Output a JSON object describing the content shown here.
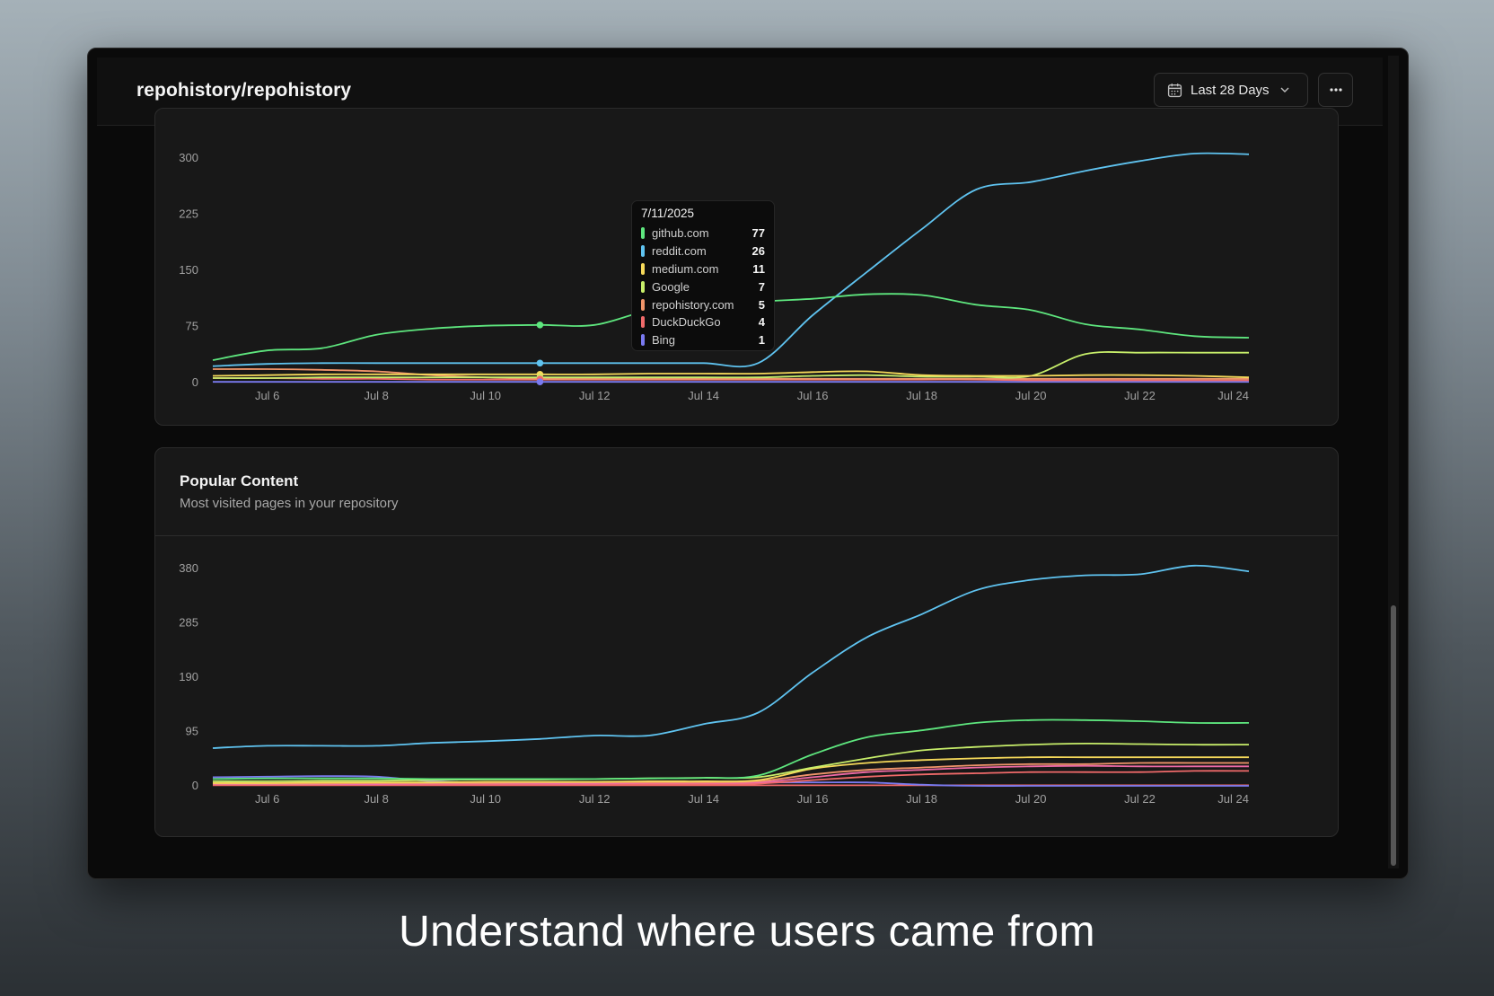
{
  "app": {
    "title": "repohistory/repohistory"
  },
  "header": {
    "date_range": "Last 28 Days"
  },
  "colors": {
    "cyan": "#5fc3f0",
    "green": "#5ee67e",
    "yellow": "#f5d95a",
    "lime": "#c7ee6a",
    "orange": "#f0956a",
    "red": "#f06a6a",
    "violet": "#7a7af0",
    "pink": "#ee6aa5"
  },
  "referrers_chart": {
    "tooltip": {
      "date": "7/11/2025",
      "rows": [
        {
          "name": "github.com",
          "value": "77",
          "color": "#5ee67e"
        },
        {
          "name": "reddit.com",
          "value": "26",
          "color": "#5fc3f0"
        },
        {
          "name": "medium.com",
          "value": "11",
          "color": "#f5d95a"
        },
        {
          "name": "Google",
          "value": "7",
          "color": "#c7ee6a"
        },
        {
          "name": "repohistory.com",
          "value": "5",
          "color": "#f0956a"
        },
        {
          "name": "DuckDuckGo",
          "value": "4",
          "color": "#f06a6a"
        },
        {
          "name": "Bing",
          "value": "1",
          "color": "#7a7af0"
        }
      ]
    }
  },
  "popular_content": {
    "title": "Popular Content",
    "subtitle": "Most visited pages in your repository"
  },
  "chart_data": [
    {
      "type": "line",
      "yticks": [
        0,
        75,
        150,
        225,
        300
      ],
      "ylim": [
        0,
        300
      ],
      "xticks": [
        "Jul 6",
        "Jul 8",
        "Jul 10",
        "Jul 12",
        "Jul 14",
        "Jul 16",
        "Jul 18",
        "Jul 20",
        "Jul 22",
        "Jul 24"
      ],
      "x_start": 5,
      "x_end": 24,
      "series": [
        {
          "name": "github.com",
          "color": "#5ee67e",
          "values": [
            30,
            43,
            46,
            64,
            72,
            76,
            77,
            77,
            96,
            100,
            108,
            112,
            118,
            117,
            104,
            97,
            78,
            71,
            62,
            60
          ]
        },
        {
          "name": "reddit.com",
          "color": "#5fc3f0",
          "values": [
            22,
            25,
            26,
            26,
            26,
            26,
            26,
            26,
            26,
            26,
            26,
            90,
            148,
            205,
            258,
            268,
            283,
            296,
            306,
            305
          ]
        },
        {
          "name": "medium.com",
          "color": "#f5d95a",
          "values": [
            9,
            10,
            11,
            11,
            11,
            11,
            11,
            11,
            12,
            12,
            12,
            14,
            15,
            10,
            9,
            9,
            10,
            10,
            9,
            7
          ]
        },
        {
          "name": "Google",
          "color": "#c7ee6a",
          "values": [
            6,
            6,
            7,
            7,
            7,
            7,
            7,
            7,
            7,
            7,
            7,
            9,
            10,
            8,
            8,
            9,
            38,
            40,
            40,
            40
          ]
        },
        {
          "name": "repohistory.com",
          "color": "#f0956a",
          "values": [
            18,
            18,
            17,
            15,
            10,
            7,
            5,
            5,
            5,
            5,
            5,
            5,
            5,
            5,
            5,
            5,
            5,
            5,
            5,
            5
          ]
        },
        {
          "name": "DuckDuckGo",
          "color": "#f06a6a",
          "values": [
            6,
            6,
            5,
            5,
            4,
            4,
            4,
            4,
            4,
            4,
            4,
            4,
            4,
            4,
            4,
            3,
            3,
            3,
            3,
            3
          ]
        },
        {
          "name": "Bing",
          "color": "#7a7af0",
          "values": [
            1,
            1,
            1,
            1,
            1,
            1,
            1,
            1,
            1,
            1,
            1,
            1,
            1,
            1,
            1,
            1,
            1,
            1,
            1,
            1
          ]
        }
      ]
    },
    {
      "type": "line",
      "title": "Popular Content",
      "yticks": [
        0,
        95,
        190,
        285,
        380
      ],
      "ylim": [
        0,
        380
      ],
      "xticks": [
        "Jul 6",
        "Jul 8",
        "Jul 10",
        "Jul 12",
        "Jul 14",
        "Jul 16",
        "Jul 18",
        "Jul 20",
        "Jul 22",
        "Jul 24"
      ],
      "x_start": 5,
      "x_end": 24,
      "series": [
        {
          "color": "#5fc3f0",
          "values": [
            66,
            70,
            70,
            70,
            75,
            78,
            82,
            88,
            88,
            108,
            128,
            198,
            260,
            300,
            342,
            360,
            368,
            370,
            385,
            375
          ]
        },
        {
          "color": "#5ee67e",
          "values": [
            12,
            13,
            13,
            13,
            12,
            12,
            12,
            12,
            13,
            14,
            18,
            55,
            85,
            97,
            110,
            115,
            115,
            113,
            110,
            110
          ]
        },
        {
          "color": "#c7ee6a",
          "values": [
            8,
            8,
            9,
            9,
            10,
            11,
            11,
            12,
            13,
            14,
            15,
            32,
            48,
            62,
            68,
            72,
            74,
            73,
            72,
            72
          ]
        },
        {
          "color": "#f5d95a",
          "values": [
            5,
            5,
            6,
            6,
            6,
            7,
            7,
            7,
            8,
            8,
            10,
            30,
            40,
            45,
            48,
            50,
            50,
            50,
            50,
            50
          ]
        },
        {
          "color": "#f0956a",
          "values": [
            4,
            4,
            4,
            5,
            5,
            5,
            6,
            6,
            6,
            6,
            8,
            20,
            28,
            32,
            36,
            38,
            38,
            40,
            40,
            40
          ]
        },
        {
          "color": "#ee6aa5",
          "values": [
            3,
            3,
            3,
            3,
            4,
            4,
            4,
            4,
            5,
            5,
            6,
            15,
            24,
            28,
            32,
            34,
            35,
            34,
            34,
            34
          ]
        },
        {
          "color": "#f06a6a",
          "values": [
            2,
            2,
            2,
            2,
            2,
            3,
            3,
            3,
            3,
            3,
            4,
            10,
            16,
            20,
            22,
            24,
            24,
            24,
            26,
            26
          ]
        },
        {
          "color": "#7a7af0",
          "values": [
            15,
            16,
            17,
            16,
            8,
            6,
            6,
            6,
            6,
            6,
            6,
            6,
            6,
            2,
            0,
            0,
            0,
            0,
            0,
            0
          ]
        },
        {
          "color": "#f06a6a",
          "values": [
            1,
            1,
            1,
            1,
            1,
            1,
            1,
            1,
            1,
            1,
            1,
            1,
            1,
            1,
            1,
            1,
            1,
            1,
            1,
            1
          ]
        }
      ]
    }
  ],
  "caption": "Understand where users came from"
}
